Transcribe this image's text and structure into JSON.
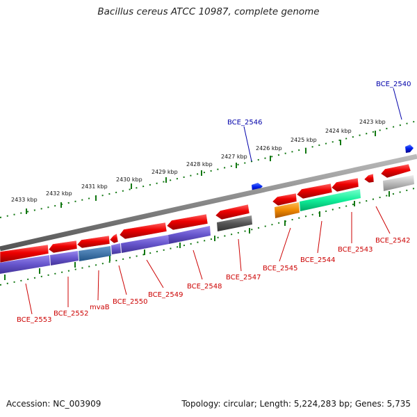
{
  "title": "Bacillus cereus ATCC 10987, complete genome",
  "footer": {
    "accession": "Accession: NC_003909",
    "topology": "Topology: circular; Length: 5,224,283 bp; Genes: 5,735"
  },
  "kbp_ticks": [
    {
      "label": "2423 kbp",
      "color": "#111"
    },
    {
      "label": "2424 kbp"
    },
    {
      "label": "2425 kbp"
    },
    {
      "label": "2426 kbp"
    },
    {
      "label": "2427 kbp"
    },
    {
      "label": "2428 kbp"
    },
    {
      "label": "2429 kbp"
    },
    {
      "label": "2430 kbp"
    },
    {
      "label": "2431 kbp"
    },
    {
      "label": "2432 kbp"
    },
    {
      "label": "2433 kbp"
    }
  ],
  "gene_labels": [
    {
      "text": "BCE_2540",
      "color": "#0000aa"
    },
    {
      "text": "BCE_2546",
      "color": "#0000aa"
    },
    {
      "text": "BCE_2542",
      "color": "#cc0000"
    },
    {
      "text": "BCE_2543",
      "color": "#cc0000"
    },
    {
      "text": "BCE_2544",
      "color": "#cc0000"
    },
    {
      "text": "BCE_2545",
      "color": "#cc0000"
    },
    {
      "text": "BCE_2547",
      "color": "#cc0000"
    },
    {
      "text": "BCE_2548",
      "color": "#cc0000"
    },
    {
      "text": "BCE_2549",
      "color": "#cc0000"
    },
    {
      "text": "BCE_2550",
      "color": "#cc0000"
    },
    {
      "text": "mvaB",
      "color": "#cc0000"
    },
    {
      "text": "BCE_2552",
      "color": "#cc0000"
    },
    {
      "text": "BCE_2553",
      "color": "#cc0000"
    }
  ],
  "colors": {
    "forward_gene": "#0022ee",
    "reverse_gene": "#ee0000",
    "cog_purple": "#6655cc",
    "cog_steel": "#4477aa",
    "cog_green": "#11ee99",
    "cog_orange": "#ee8800",
    "cog_dark": "#555555",
    "cog_gray": "#bbbbbb",
    "backbone": "#888888",
    "tick_green": "#117711"
  }
}
